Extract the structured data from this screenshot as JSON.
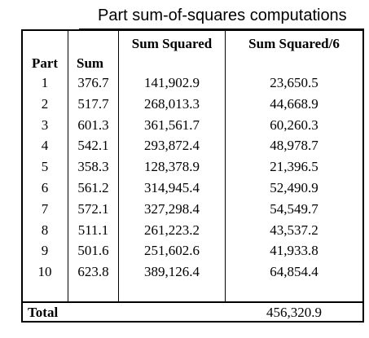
{
  "title": "Part sum-of-squares computations",
  "headers": {
    "part": "Part",
    "sum": "Sum",
    "sum_squared": "Sum Squared",
    "sum_squared_6": "Sum Squared/6"
  },
  "rows": [
    {
      "part": "1",
      "sum": "376.7",
      "sum_squared": "141,902.9",
      "sum_squared_6": "23,650.5"
    },
    {
      "part": "2",
      "sum": "517.7",
      "sum_squared": "268,013.3",
      "sum_squared_6": "44,668.9"
    },
    {
      "part": "3",
      "sum": "601.3",
      "sum_squared": "361,561.7",
      "sum_squared_6": "60,260.3"
    },
    {
      "part": "4",
      "sum": "542.1",
      "sum_squared": "293,872.4",
      "sum_squared_6": "48,978.7"
    },
    {
      "part": "5",
      "sum": "358.3",
      "sum_squared": "128,378.9",
      "sum_squared_6": "21,396.5"
    },
    {
      "part": "6",
      "sum": "561.2",
      "sum_squared": "314,945.4",
      "sum_squared_6": "52,490.9"
    },
    {
      "part": "7",
      "sum": "572.1",
      "sum_squared": "327,298.4",
      "sum_squared_6": "54,549.7"
    },
    {
      "part": "8",
      "sum": "511.1",
      "sum_squared": "261,223.2",
      "sum_squared_6": "43,537.2"
    },
    {
      "part": "9",
      "sum": "501.6",
      "sum_squared": "251,602.6",
      "sum_squared_6": "41,933.8"
    },
    {
      "part": "10",
      "sum": "623.8",
      "sum_squared": "389,126.4",
      "sum_squared_6": "64,854.4"
    }
  ],
  "total": {
    "label": "Total",
    "value": "456,320.9"
  }
}
